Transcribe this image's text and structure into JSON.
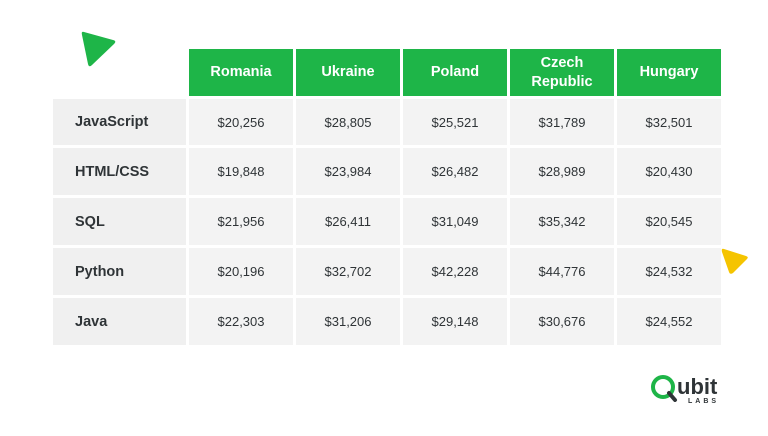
{
  "chart_data": {
    "type": "table",
    "columns": [
      "Romania",
      "Ukraine",
      "Poland",
      "Czech Republic",
      "Hungary"
    ],
    "rows": [
      {
        "label": "JavaScript",
        "values": [
          "$20,256",
          "$28,805",
          "$25,521",
          "$31,789",
          "$32,501"
        ]
      },
      {
        "label": "HTML/CSS",
        "values": [
          "$19,848",
          "$23,984",
          "$26,482",
          "$28,989",
          "$20,430"
        ]
      },
      {
        "label": "SQL",
        "values": [
          "$21,956",
          "$26,411",
          "$31,049",
          "$35,342",
          "$20,545"
        ]
      },
      {
        "label": "Python",
        "values": [
          "$20,196",
          "$32,702",
          "$42,228",
          "$44,776",
          "$24,532"
        ]
      },
      {
        "label": "Java",
        "values": [
          "$22,303",
          "$31,206",
          "$29,148",
          "$30,676",
          "$24,552"
        ]
      }
    ]
  },
  "logo": {
    "name": "ubit",
    "sub": "LABS"
  },
  "colors": {
    "header_green": "#1eb548",
    "accent_yellow": "#f5c400",
    "cell_bg": "#f3f3f3",
    "text_dark": "#2f3437"
  },
  "decorations": [
    "green-triangle-icon",
    "yellow-triangle-icon"
  ]
}
